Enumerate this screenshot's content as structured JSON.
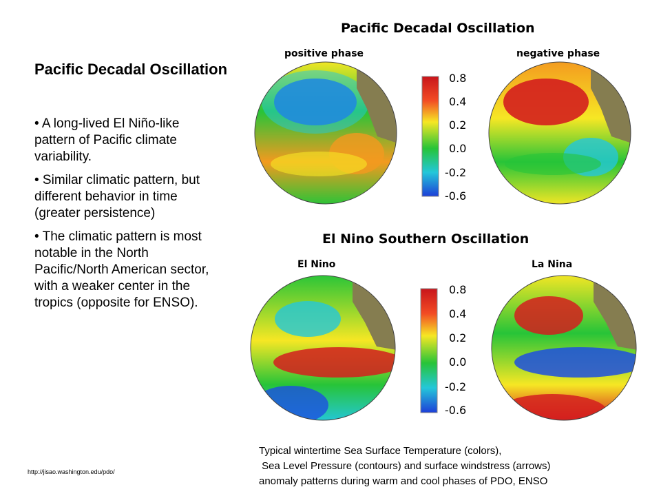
{
  "slide": {
    "heading": "Pacific Decadal Oscillation",
    "bullets": [
      "• A long-lived El Niño-like pattern of Pacific climate variability.",
      "• Similar climatic pattern, but different behavior in time (greater persistence)",
      "• The climatic pattern is most notable in the North Pacific/North American sector, with a weaker center in the tropics (opposite for ENSO)."
    ],
    "source_url": "http://jisao.washington.edu/pdo/",
    "caption": [
      "Typical wintertime Sea Surface Temperature (colors),",
      " Sea Level Pressure (contours) and surface windstress (arrows)",
      "anomaly patterns during warm and cool phases of PDO, ENSO"
    ]
  },
  "figure": {
    "pdo": {
      "title": "Pacific Decadal Oscillation",
      "left_label": "positive phase",
      "right_label": "negative phase",
      "colorbar_ticks": [
        "0.8",
        "0.4",
        "0.2",
        "0.0",
        "-0.2",
        "-0.6"
      ]
    },
    "enso": {
      "title": "El Nino Southern Oscillation",
      "left_label": "El Nino",
      "right_label": "La Nina",
      "colorbar_ticks": [
        "0.8",
        "0.4",
        "0.2",
        "0.0",
        "-0.2",
        "-0.6"
      ]
    },
    "colors": {
      "warm": "#d41e1e",
      "orange": "#f39a1f",
      "yellow": "#f6e724",
      "green": "#27c438",
      "cyan": "#24c7d9",
      "cool": "#1d4fe0",
      "land": "#857d50"
    }
  }
}
